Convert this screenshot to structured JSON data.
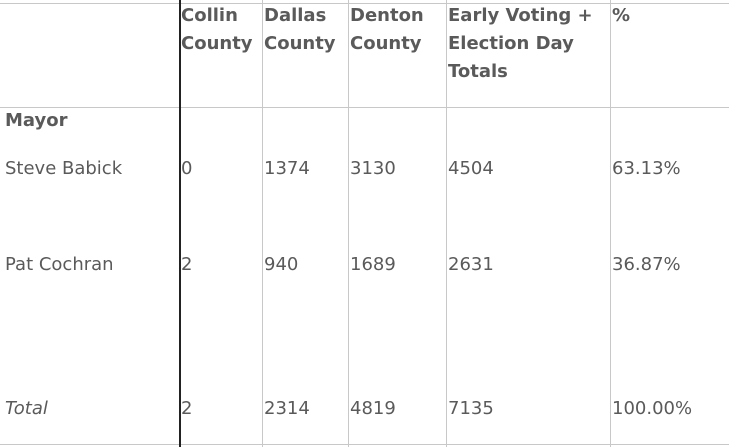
{
  "table": {
    "headers": {
      "collin": [
        "Collin",
        "County"
      ],
      "dallas": [
        "Dallas",
        "County"
      ],
      "denton": [
        "Denton",
        "County"
      ],
      "totals": [
        "Early Voting +",
        "Election Day",
        "Totals"
      ],
      "percent": "%"
    },
    "section_label": "Mayor",
    "rows": [
      {
        "name": "Steve Babick",
        "collin": "0",
        "dallas": "1374",
        "denton": "3130",
        "total": "4504",
        "percent": "63.13%"
      },
      {
        "name": "Pat Cochran",
        "collin": "2",
        "dallas": "940",
        "denton": "1689",
        "total": "2631",
        "percent": "36.87%"
      }
    ],
    "total_row": {
      "label": "Total",
      "collin": "2",
      "dallas": "2314",
      "denton": "4819",
      "total": "7135",
      "percent": "100.00%"
    }
  }
}
